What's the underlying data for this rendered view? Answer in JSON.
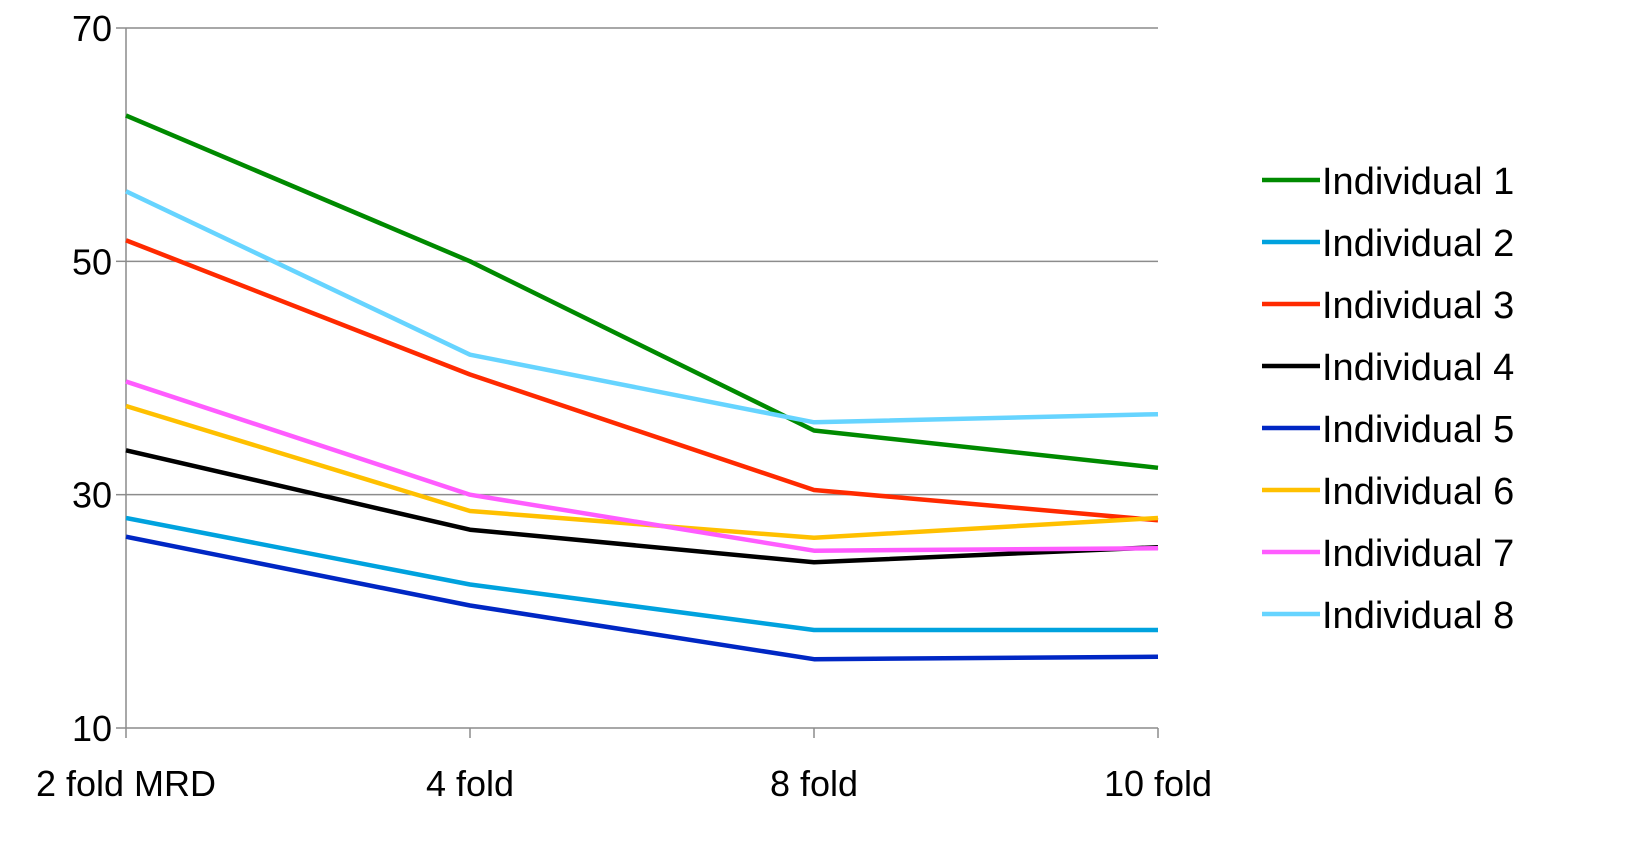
{
  "chart_data": {
    "type": "line",
    "title": "",
    "xlabel": "",
    "ylabel": "",
    "categories": [
      "2 fold MRD",
      "4 fold",
      "8 fold",
      "10 fold"
    ],
    "ylim": [
      10,
      70
    ],
    "yticks": [
      "10",
      "30",
      "50",
      "70"
    ],
    "grid": "horizontal",
    "legend_position": "right",
    "series": [
      {
        "name": "Individual 1",
        "color": "#008A00",
        "values": [
          62.5,
          50.0,
          35.5,
          32.3
        ]
      },
      {
        "name": "Individual 2",
        "color": "#00A2DE",
        "values": [
          28.0,
          22.3,
          18.4,
          18.4
        ]
      },
      {
        "name": "Individual 3",
        "color": "#FF2A00",
        "values": [
          51.8,
          40.3,
          30.4,
          27.8
        ]
      },
      {
        "name": "Individual 4",
        "color": "#000000",
        "values": [
          33.8,
          27.0,
          24.2,
          25.5
        ]
      },
      {
        "name": "Individual 5",
        "color": "#0027C4",
        "values": [
          26.4,
          20.5,
          15.9,
          16.1
        ]
      },
      {
        "name": "Individual 6",
        "color": "#FFC000",
        "values": [
          37.6,
          28.6,
          26.3,
          28.0
        ]
      },
      {
        "name": "Individual 7",
        "color": "#FF5CFF",
        "values": [
          39.7,
          30.0,
          25.2,
          25.4
        ]
      },
      {
        "name": "Individual 8",
        "color": "#66D4FF",
        "values": [
          56.0,
          42.0,
          36.2,
          36.9
        ]
      }
    ]
  }
}
